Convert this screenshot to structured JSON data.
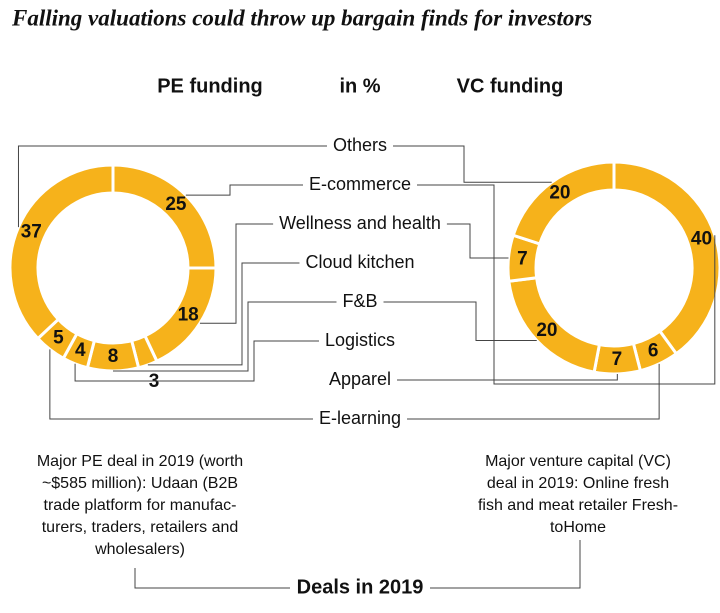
{
  "title": "Falling valuations could throw up bargain finds for investors",
  "unit_label": "in %",
  "categories": [
    "Others",
    "E-commerce",
    "Wellness and health",
    "Cloud kitchen",
    "F&B",
    "Logistics",
    "Apparel",
    "E-learning"
  ],
  "footer": "Deals in 2019",
  "chart_data": [
    {
      "type": "pie",
      "title": "PE funding",
      "color": "#f6b21b",
      "categories": [
        "E-commerce",
        "Wellness and health",
        "Cloud kitchen",
        "F&B",
        "Logistics",
        "E-learning",
        "Others"
      ],
      "values": [
        25,
        18,
        3,
        8,
        4,
        5,
        37
      ],
      "note": [
        "Major PE deal in 2019 (worth",
        "~$585 million): Udaan (B2B",
        "trade platform for manufac-",
        "turers, traders, retailers and",
        "wholesalers)"
      ]
    },
    {
      "type": "pie",
      "title": "VC funding",
      "color": "#f6b21b",
      "categories": [
        "E-commerce",
        "E-learning",
        "Apparel",
        "F&B",
        "Wellness and health",
        "Others"
      ],
      "values": [
        40,
        6,
        7,
        20,
        7,
        20
      ],
      "note": [
        "Major venture capital (VC)",
        "deal in 2019: Online fresh",
        "fish and meat retailer Fresh-",
        "toHome"
      ]
    }
  ]
}
